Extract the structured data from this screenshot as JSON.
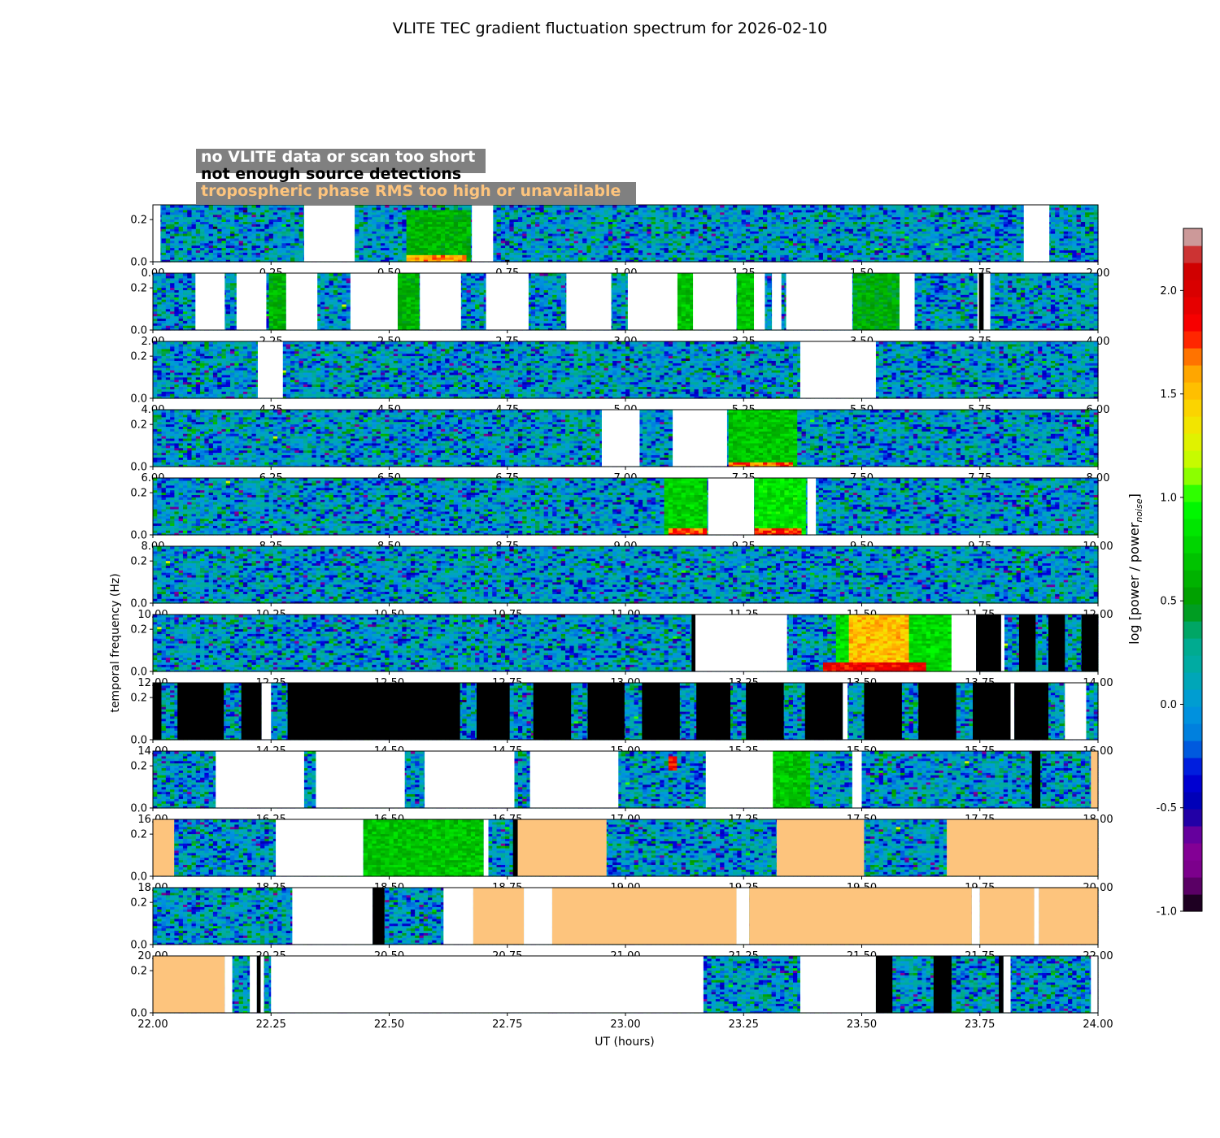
{
  "chart_data": {
    "type": "heatmap",
    "title": "VLITE TEC gradient fluctuation spectrum for 2026-02-10",
    "xlabel": "UT (hours)",
    "ylabel": "temporal frequency (Hz)",
    "colorbar_label": "log [power / power",
    "colorbar_label_sub": "noise",
    "colorbar_label_end": "]",
    "colorbar_range": [
      -1.0,
      2.3
    ],
    "colorbar_ticks": [
      "-1.0",
      "-0.5",
      "0.0",
      "0.5",
      "1.0",
      "1.5",
      "2.0"
    ],
    "colorbar_tick_values": [
      -1.0,
      -0.5,
      0.0,
      0.5,
      1.0,
      1.5,
      2.0
    ],
    "colormap": "nipy_spectral",
    "ylim": [
      0,
      0.27
    ],
    "ytick_labels": [
      "0.0",
      "0.2"
    ],
    "ytick_values": [
      0.0,
      0.2
    ],
    "legend": [
      {
        "label": "no VLITE data or scan too short",
        "color": "#ffffff"
      },
      {
        "label": "not enough source detections",
        "color": "#000000"
      },
      {
        "label": "tropospheric phase RMS too high or unavailable",
        "color": "#fdc47d"
      }
    ],
    "colors": {
      "no_data": "#ffffff",
      "few_detections": "#000000",
      "trop_rms": "#fdc47d",
      "legend_bg": "#808080"
    },
    "panels": [
      {
        "xlim": [
          0,
          2
        ],
        "xticks": [
          "0.00",
          "0.25",
          "0.50",
          "0.75",
          "1.00",
          "1.25",
          "1.50",
          "1.75",
          "2.00"
        ],
        "gaps": [
          [
            0,
            0.016,
            "no_data"
          ],
          [
            0.32,
            0.427,
            "no_data"
          ],
          [
            0.675,
            0.72,
            "no_data"
          ],
          [
            1.843,
            1.897,
            "no_data"
          ]
        ],
        "hot": [
          [
            0.54,
            0.675,
            0.0,
            0.25,
            0.6
          ],
          [
            0.54,
            0.66,
            0.0,
            0.03,
            1.6
          ]
        ]
      },
      {
        "xlim": [
          2,
          4
        ],
        "xticks": [
          "2.00",
          "2.25",
          "2.50",
          "2.75",
          "3.00",
          "3.25",
          "3.50",
          "3.75",
          "4.00"
        ],
        "gaps": [
          [
            2.09,
            2.152,
            "no_data"
          ],
          [
            2.177,
            2.24,
            "no_data"
          ],
          [
            2.282,
            2.348,
            "no_data"
          ],
          [
            2.418,
            2.518,
            "no_data"
          ],
          [
            2.565,
            2.652,
            "no_data"
          ],
          [
            2.705,
            2.795,
            "no_data"
          ],
          [
            2.875,
            2.97,
            "no_data"
          ],
          [
            3.005,
            3.11,
            "no_data"
          ],
          [
            3.143,
            3.235,
            "no_data"
          ],
          [
            3.272,
            3.295,
            "no_data"
          ],
          [
            3.31,
            3.33,
            "no_data"
          ],
          [
            3.34,
            3.48,
            "no_data"
          ],
          [
            3.58,
            3.612,
            "no_data"
          ],
          [
            3.745,
            3.748,
            "no_data"
          ],
          [
            3.748,
            3.758,
            "few_detections"
          ],
          [
            3.758,
            3.772,
            "no_data"
          ]
        ],
        "hot": [
          [
            2.242,
            2.28,
            0.0,
            0.27,
            0.6
          ],
          [
            2.52,
            2.565,
            0.0,
            0.27,
            0.6
          ],
          [
            3.11,
            3.143,
            0.0,
            0.27,
            0.7
          ],
          [
            3.235,
            3.27,
            0.0,
            0.27,
            0.7
          ],
          [
            3.48,
            3.58,
            0.0,
            0.27,
            0.55
          ]
        ]
      },
      {
        "xlim": [
          4,
          6
        ],
        "xticks": [
          "4.00",
          "4.25",
          "4.50",
          "4.75",
          "5.00",
          "5.25",
          "5.50",
          "5.75",
          "6.00"
        ],
        "gaps": [
          [
            4.222,
            4.275,
            "no_data"
          ],
          [
            5.37,
            5.53,
            "no_data"
          ]
        ],
        "hot": []
      },
      {
        "xlim": [
          6,
          8
        ],
        "xticks": [
          "6.00",
          "6.25",
          "6.50",
          "6.75",
          "7.00",
          "7.25",
          "7.50",
          "7.75",
          "8.00"
        ],
        "gaps": [
          [
            6.95,
            7.03,
            "no_data"
          ],
          [
            7.1,
            7.215,
            "no_data"
          ]
        ],
        "hot": [
          [
            7.215,
            7.36,
            0.0,
            0.27,
            0.7
          ],
          [
            7.215,
            7.35,
            0.0,
            0.025,
            1.7
          ]
        ]
      },
      {
        "xlim": [
          8,
          10
        ],
        "xticks": [
          "8.00",
          "8.25",
          "8.50",
          "8.75",
          "9.00",
          "9.25",
          "9.50",
          "9.75",
          "10.00"
        ],
        "gaps": [
          [
            9.175,
            9.272,
            "no_data"
          ],
          [
            9.385,
            9.403,
            "no_data"
          ]
        ],
        "hot": [
          [
            9.08,
            9.175,
            0.0,
            0.27,
            0.75
          ],
          [
            9.272,
            9.385,
            0.0,
            0.27,
            0.85
          ],
          [
            9.09,
            9.175,
            0.0,
            0.03,
            1.7
          ],
          [
            9.272,
            9.37,
            0.0,
            0.03,
            1.8
          ]
        ]
      },
      {
        "xlim": [
          10,
          12
        ],
        "xticks": [
          "10.00",
          "10.25",
          "10.50",
          "10.75",
          "11.00",
          "11.25",
          "11.50",
          "11.75",
          "12.00"
        ],
        "gaps": [],
        "hot": []
      },
      {
        "xlim": [
          12,
          14
        ],
        "xticks": [
          "12.00",
          "12.25",
          "12.50",
          "12.75",
          "13.00",
          "13.25",
          "13.50",
          "13.75",
          "14.00"
        ],
        "gaps": [
          [
            13.14,
            13.148,
            "few_detections"
          ],
          [
            13.148,
            13.342,
            "no_data"
          ],
          [
            13.69,
            13.742,
            "no_data"
          ],
          [
            13.742,
            13.795,
            "few_detections"
          ],
          [
            13.795,
            13.802,
            "no_data"
          ],
          [
            13.833,
            13.868,
            "few_detections"
          ],
          [
            13.895,
            13.93,
            "few_detections"
          ],
          [
            13.965,
            14.0,
            "few_detections"
          ]
        ],
        "hot": [
          [
            13.45,
            13.69,
            0.0,
            0.27,
            0.8
          ],
          [
            13.47,
            13.6,
            0.05,
            0.27,
            1.5
          ],
          [
            13.42,
            13.64,
            0.0,
            0.05,
            1.9
          ]
        ]
      },
      {
        "xlim": [
          14,
          16
        ],
        "xticks": [
          "14.00",
          "14.25",
          "14.50",
          "14.75",
          "15.00",
          "15.25",
          "15.50",
          "15.75",
          "16.00"
        ],
        "gaps": [
          [
            14.0,
            14.018,
            "few_detections"
          ],
          [
            14.052,
            14.15,
            "few_detections"
          ],
          [
            14.187,
            14.23,
            "few_detections"
          ],
          [
            14.23,
            14.25,
            "no_data"
          ],
          [
            14.285,
            14.65,
            "few_detections"
          ],
          [
            14.685,
            14.755,
            "few_detections"
          ],
          [
            14.805,
            14.885,
            "few_detections"
          ],
          [
            14.92,
            14.998,
            "few_detections"
          ],
          [
            15.035,
            15.115,
            "few_detections"
          ],
          [
            15.15,
            15.222,
            "few_detections"
          ],
          [
            15.255,
            15.335,
            "few_detections"
          ],
          [
            15.38,
            15.46,
            "few_detections"
          ],
          [
            15.46,
            15.47,
            "no_data"
          ],
          [
            15.505,
            15.585,
            "few_detections"
          ],
          [
            15.62,
            15.7,
            "few_detections"
          ],
          [
            15.735,
            15.815,
            "few_detections"
          ],
          [
            15.815,
            15.823,
            "no_data"
          ],
          [
            15.823,
            15.895,
            "few_detections"
          ],
          [
            15.93,
            15.975,
            "no_data"
          ]
        ],
        "hot": []
      },
      {
        "xlim": [
          16,
          18
        ],
        "xticks": [
          "16.00",
          "16.25",
          "16.50",
          "16.75",
          "17.00",
          "17.25",
          "17.50",
          "17.75",
          "18.00"
        ],
        "gaps": [
          [
            16.133,
            16.32,
            "no_data"
          ],
          [
            16.345,
            16.533,
            "no_data"
          ],
          [
            16.575,
            16.765,
            "no_data"
          ],
          [
            16.798,
            16.985,
            "no_data"
          ],
          [
            17.17,
            17.312,
            "no_data"
          ],
          [
            17.48,
            17.5,
            "no_data"
          ],
          [
            17.86,
            17.878,
            "few_detections"
          ],
          [
            17.985,
            18.0,
            "trop_rms"
          ]
        ],
        "hot": [
          [
            17.312,
            17.39,
            0.0,
            0.27,
            0.7
          ],
          [
            17.095,
            17.105,
            0.18,
            0.25,
            1.9
          ]
        ]
      },
      {
        "xlim": [
          18,
          20
        ],
        "xticks": [
          "18.00",
          "18.25",
          "18.50",
          "18.75",
          "19.00",
          "19.25",
          "19.50",
          "19.75",
          "20.00"
        ],
        "gaps": [
          [
            18.0,
            18.045,
            "trop_rms"
          ],
          [
            18.26,
            18.445,
            "no_data"
          ],
          [
            18.7,
            18.71,
            "no_data"
          ],
          [
            18.762,
            18.772,
            "few_detections"
          ],
          [
            18.772,
            18.96,
            "trop_rms"
          ],
          [
            19.32,
            19.505,
            "trop_rms"
          ],
          [
            19.68,
            20.0,
            "trop_rms"
          ]
        ],
        "hot": [
          [
            18.445,
            18.7,
            0.0,
            0.27,
            0.7
          ]
        ]
      },
      {
        "xlim": [
          20,
          22
        ],
        "xticks": [
          "20.00",
          "20.25",
          "20.50",
          "20.75",
          "21.00",
          "21.25",
          "21.50",
          "21.75",
          "22.00"
        ],
        "gaps": [
          [
            20.295,
            20.465,
            "no_data"
          ],
          [
            20.465,
            20.49,
            "few_detections"
          ],
          [
            20.615,
            20.678,
            "no_data"
          ],
          [
            20.678,
            20.785,
            "trop_rms"
          ],
          [
            20.785,
            20.845,
            "no_data"
          ],
          [
            20.845,
            21.235,
            "trop_rms"
          ],
          [
            21.235,
            21.262,
            "no_data"
          ],
          [
            21.262,
            21.733,
            "trop_rms"
          ],
          [
            21.733,
            21.75,
            "no_data"
          ],
          [
            21.75,
            21.865,
            "trop_rms"
          ],
          [
            21.865,
            21.875,
            "no_data"
          ],
          [
            21.875,
            22.0,
            "trop_rms"
          ]
        ],
        "hot": []
      },
      {
        "xlim": [
          22,
          24
        ],
        "xticks": [
          "22.00",
          "22.25",
          "22.50",
          "22.75",
          "23.00",
          "23.25",
          "23.50",
          "23.75",
          "24.00"
        ],
        "gaps": [
          [
            22.0,
            22.152,
            "trop_rms"
          ],
          [
            22.152,
            22.168,
            "no_data"
          ],
          [
            22.205,
            22.22,
            "no_data"
          ],
          [
            22.22,
            22.228,
            "few_detections"
          ],
          [
            22.228,
            22.235,
            "no_data"
          ],
          [
            22.25,
            23.165,
            "no_data"
          ],
          [
            23.37,
            23.53,
            "no_data"
          ],
          [
            23.53,
            23.565,
            "few_detections"
          ],
          [
            23.652,
            23.69,
            "few_detections"
          ],
          [
            23.79,
            23.8,
            "few_detections"
          ],
          [
            23.8,
            23.815,
            "no_data"
          ],
          [
            23.985,
            24.0,
            "no_data"
          ]
        ],
        "hot": []
      }
    ]
  }
}
